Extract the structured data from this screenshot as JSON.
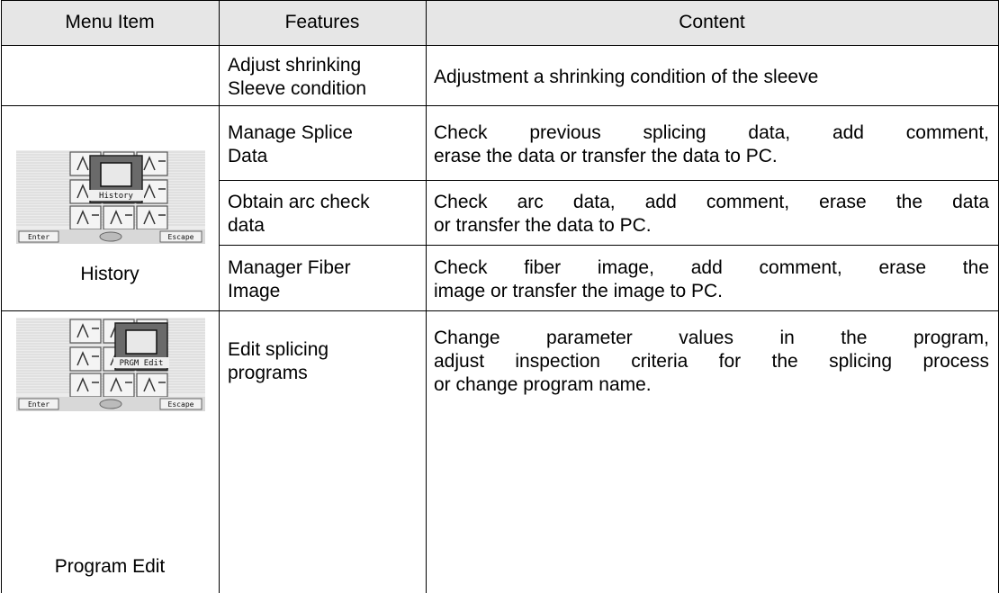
{
  "table": {
    "header": [
      "Menu Item",
      "Features",
      "Content"
    ],
    "rows": [
      {
        "features": "Adjust shrinking\nSleeve condition",
        "content": [
          "Adjustment a shrinking condition of the sleeve"
        ]
      },
      {
        "features": "Manage Splice\nData",
        "content": [
          "Check previous splicing data, add comment,",
          "erase the data or transfer the data to PC."
        ]
      },
      {
        "features": "Obtain arc check\ndata",
        "content": [
          "Check arc data, add comment, erase the data",
          "or transfer the data to PC."
        ]
      },
      {
        "features": "Manager Fiber\nImage",
        "content": [
          "Check fiber image, add comment, erase the",
          "image or transfer the image to PC."
        ]
      },
      {
        "features": "Edit splicing\nprograms",
        "content": [
          "Change parameter values in the program,",
          "adjust inspection criteria for the splicing process",
          "or change program name."
        ]
      }
    ],
    "menu_items": [
      {
        "label": "History",
        "icon": {
          "caption": "History",
          "buttons": [
            "Enter",
            "Escape"
          ]
        }
      },
      {
        "label": "Program Edit",
        "icon": {
          "caption": "PRGM Edit",
          "buttons": [
            "Enter",
            "Escape"
          ]
        }
      }
    ]
  }
}
